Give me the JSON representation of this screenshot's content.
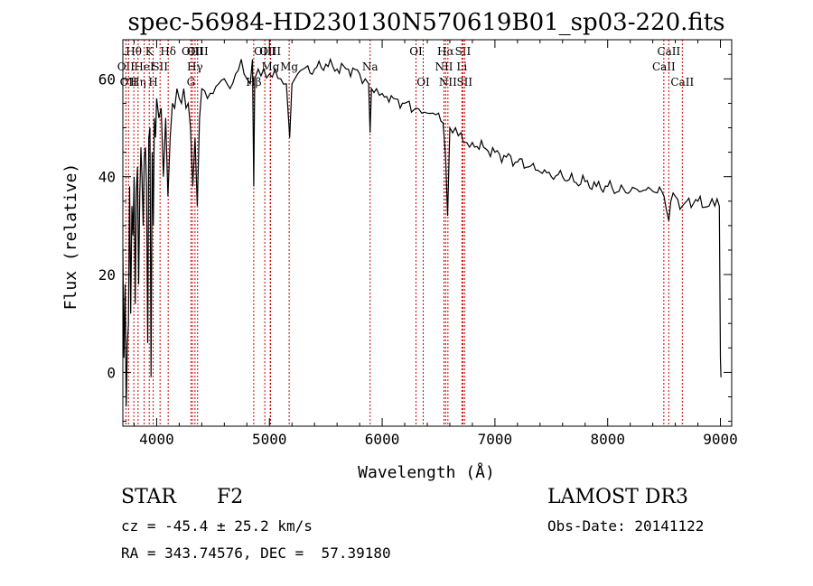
{
  "chart_data": {
    "type": "line",
    "title": "spec-56984-HD230130N570619B01_sp03-220.fits",
    "xlabel": "Wavelength (Å)",
    "ylabel": "Flux (relative)",
    "xlim": [
      3700,
      9100
    ],
    "ylim": [
      -11,
      68
    ],
    "xticks": [
      4000,
      5000,
      6000,
      7000,
      8000,
      9000
    ],
    "yticks": [
      0,
      20,
      40,
      60
    ],
    "xtick_labels": [
      "4000",
      "5000",
      "6000",
      "7000",
      "8000",
      "9000"
    ],
    "ytick_labels": [
      "0",
      "20",
      "40",
      "60"
    ],
    "series": [
      {
        "name": "flux",
        "x": [
          3700,
          3710,
          3720,
          3730,
          3740,
          3750,
          3760,
          3770,
          3780,
          3790,
          3800,
          3810,
          3820,
          3830,
          3840,
          3850,
          3860,
          3870,
          3880,
          3890,
          3900,
          3910,
          3920,
          3930,
          3940,
          3950,
          3960,
          3970,
          3980,
          3990,
          4000,
          4020,
          4040,
          4060,
          4080,
          4100,
          4120,
          4140,
          4160,
          4180,
          4200,
          4220,
          4240,
          4260,
          4280,
          4300,
          4320,
          4340,
          4360,
          4380,
          4400,
          4450,
          4500,
          4550,
          4600,
          4650,
          4700,
          4750,
          4800,
          4830,
          4850,
          4861,
          4870,
          4900,
          4950,
          5000,
          5050,
          5100,
          5150,
          5180,
          5200,
          5250,
          5300,
          5400,
          5500,
          5600,
          5700,
          5800,
          5850,
          5880,
          5893,
          5905,
          5950,
          6000,
          6100,
          6200,
          6300,
          6350,
          6400,
          6450,
          6500,
          6540,
          6563,
          6580,
          6600,
          6650,
          6700,
          6720,
          6750,
          6800,
          6900,
          7000,
          7100,
          7200,
          7300,
          7400,
          7500,
          7600,
          7700,
          7800,
          7900,
          8000,
          8100,
          8200,
          8300,
          8400,
          8480,
          8500,
          8542,
          8560,
          8600,
          8662,
          8700,
          8800,
          8900,
          8950,
          8990,
          9000,
          9005
        ],
        "values": [
          25,
          3,
          18,
          -7,
          6,
          10,
          38,
          12,
          34,
          28,
          40,
          14,
          37,
          42,
          18,
          36,
          46,
          40,
          30,
          44,
          46,
          38,
          6,
          48,
          50,
          -1,
          45,
          30,
          52,
          48,
          56,
          52,
          54,
          40,
          52,
          36,
          48,
          55,
          54,
          58,
          56,
          55,
          58,
          54,
          55,
          50,
          38,
          48,
          34,
          52,
          58,
          56,
          57,
          59,
          60,
          58,
          61,
          64,
          60,
          59,
          64,
          38,
          60,
          62,
          62,
          61,
          62,
          60,
          59,
          48,
          59,
          61,
          62,
          62,
          63,
          62,
          62,
          61,
          60,
          59,
          49,
          58,
          58,
          57,
          56,
          55,
          54,
          53,
          53,
          53,
          53,
          51,
          44,
          32,
          50,
          50,
          49,
          47,
          47,
          47,
          46,
          45,
          44,
          43,
          42,
          41,
          40,
          40,
          39,
          39,
          38,
          38,
          37,
          37,
          37,
          37,
          37,
          36,
          31,
          35,
          36,
          34,
          35,
          35,
          34,
          34,
          34,
          3,
          -1
        ]
      }
    ],
    "line_markers": [
      {
        "x": 3727,
        "label": "OII",
        "row": 2
      },
      {
        "x": 3750,
        "label": "OII",
        "row": 3
      },
      {
        "x": 3797,
        "label": "Hθ",
        "row": 1
      },
      {
        "x": 3835,
        "label": "Hη",
        "row": 3
      },
      {
        "x": 3889,
        "label": "HeI",
        "row": 2
      },
      {
        "x": 3934,
        "label": "K",
        "row": 1
      },
      {
        "x": 3969,
        "label": "H",
        "row": 3
      },
      {
        "x": 4030,
        "label": "SII",
        "row": 2
      },
      {
        "x": 4102,
        "label": "Hδ",
        "row": 1
      },
      {
        "x": 4304,
        "label": "G",
        "row": 3
      },
      {
        "x": 4317,
        "label": "OIII",
        "row": 1
      },
      {
        "x": 4340,
        "label": "Hγ",
        "row": 2
      },
      {
        "x": 4363,
        "label": "OIII",
        "row": 1
      },
      {
        "x": 4861,
        "label": "Hβ",
        "row": 3
      },
      {
        "x": 4959,
        "label": "OIII",
        "row": 1
      },
      {
        "x": 5007,
        "label": "OIII",
        "row": 1
      },
      {
        "x": 5010,
        "label": "Mg",
        "row": 2
      },
      {
        "x": 5175,
        "label": "Mg",
        "row": 2
      },
      {
        "x": 5893,
        "label": "Na",
        "row": 2
      },
      {
        "x": 6300,
        "label": "OI",
        "row": 1
      },
      {
        "x": 6364,
        "label": "OI",
        "row": 3
      },
      {
        "x": 6548,
        "label": "NII",
        "row": 2
      },
      {
        "x": 6563,
        "label": "Hα",
        "row": 1
      },
      {
        "x": 6583,
        "label": "NII",
        "row": 3
      },
      {
        "x": 6707,
        "label": "Li",
        "row": 2
      },
      {
        "x": 6716,
        "label": "SII",
        "row": 1
      },
      {
        "x": 6731,
        "label": "SII",
        "row": 3
      },
      {
        "x": 8498,
        "label": "CaII",
        "row": 2
      },
      {
        "x": 8542,
        "label": "CaII",
        "row": 1
      },
      {
        "x": 8662,
        "label": "CaII",
        "row": 3
      }
    ]
  },
  "info": {
    "object_class": "STAR",
    "subclass": "F2",
    "survey": "LAMOST DR3",
    "cz_line": "cz = -45.4 ± 25.2 km/s",
    "obs_date_line": "Obs-Date: 20141122",
    "coords_line": "RA = 343.74576, DEC =  57.39180"
  }
}
